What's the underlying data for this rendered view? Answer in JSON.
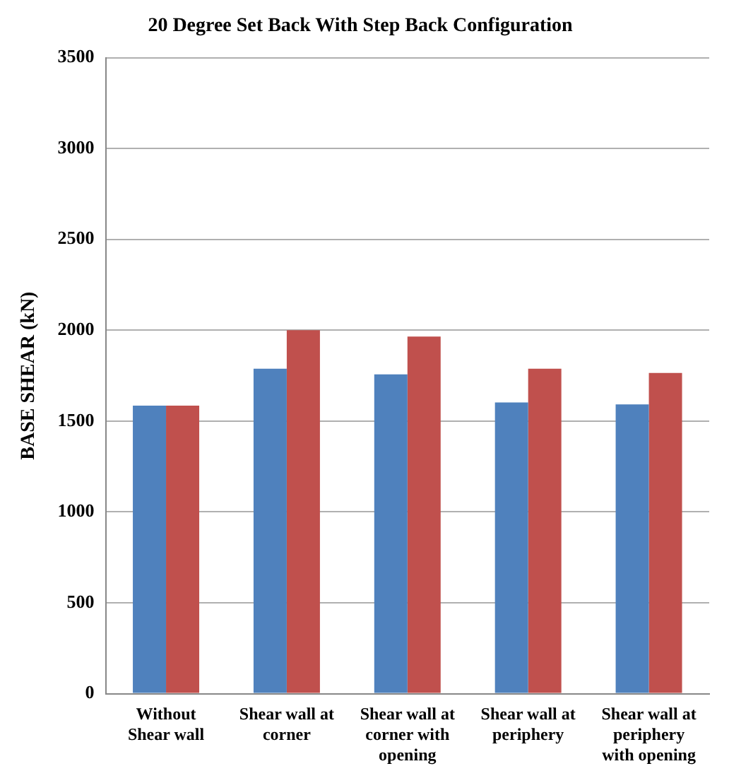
{
  "chart_data": {
    "type": "bar",
    "title": "20 Degree Set Back With Step Back Configuration",
    "ylabel": "BASE SHEAR (kN)",
    "categories": [
      "Without\nShear wall",
      "Shear wall at\ncorner",
      "Shear wall at\ncorner with\nopening",
      "Shear wall at\nperiphery",
      "Shear wall at\nperiphery\nwith opening"
    ],
    "series": [
      {
        "color": "#4f81bd",
        "values": [
          1585,
          1788,
          1757,
          1603,
          1592
        ]
      },
      {
        "color": "#c0504d",
        "values": [
          1585,
          2000,
          1965,
          1788,
          1765
        ]
      }
    ],
    "ylim": [
      0,
      3500
    ],
    "yticks": [
      0,
      500,
      1000,
      1500,
      2000,
      2500,
      3000,
      3500
    ],
    "grid": "y",
    "legend": false
  }
}
